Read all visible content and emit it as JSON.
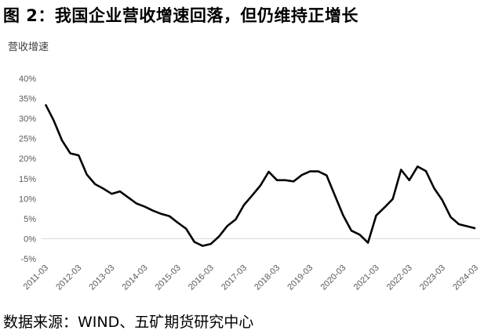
{
  "title": "图 2：我国企业营收增速回落，但仍维持正增长",
  "source": "数据来源：WIND、五矿期货研究中心",
  "chart_data": {
    "type": "line",
    "ylabel": "营收增速",
    "ylim": [
      -5,
      40
    ],
    "y_ticks": [
      "40%",
      "35%",
      "30%",
      "25%",
      "20%",
      "15%",
      "10%",
      "5%",
      "0%",
      "-5%"
    ],
    "x_ticks": [
      "2011-03",
      "2012-03",
      "2013-03",
      "2014-03",
      "2015-03",
      "2016-03",
      "2017-03",
      "2018-03",
      "2019-03",
      "2020-03",
      "2021-03",
      "2022-03",
      "2023-03",
      "2024-03"
    ],
    "grid": false,
    "line_color": "#000000",
    "series": [
      {
        "x": [
          "2011-03",
          "2011-06",
          "2011-09",
          "2011-12",
          "2012-03",
          "2012-06",
          "2012-09",
          "2012-12",
          "2013-03",
          "2013-06",
          "2013-09",
          "2013-12",
          "2014-03",
          "2014-06",
          "2014-09",
          "2014-12",
          "2015-03",
          "2015-06",
          "2015-09",
          "2015-12",
          "2016-03",
          "2016-06",
          "2016-09",
          "2016-12",
          "2017-03",
          "2017-06",
          "2017-09",
          "2017-12",
          "2018-03",
          "2018-06",
          "2018-09",
          "2018-12",
          "2019-03",
          "2019-06",
          "2019-09",
          "2019-12",
          "2020-03",
          "2020-06",
          "2020-09",
          "2020-12",
          "2021-03",
          "2021-06",
          "2021-09",
          "2021-12",
          "2022-03",
          "2022-06",
          "2022-09",
          "2022-12",
          "2023-03",
          "2023-06",
          "2023-09",
          "2023-12",
          "2024-03"
        ],
        "values": [
          33.5,
          29.5,
          24.5,
          21.3,
          20.8,
          16.0,
          13.6,
          12.5,
          11.2,
          11.8,
          10.3,
          8.8,
          8.0,
          7.0,
          6.2,
          5.6,
          4.0,
          2.5,
          -0.8,
          -1.8,
          -1.3,
          0.6,
          3.2,
          4.8,
          8.4,
          10.8,
          13.3,
          16.7,
          14.6,
          14.6,
          14.3,
          15.9,
          16.8,
          16.8,
          15.8,
          10.8,
          5.8,
          2.0,
          1.0,
          -1.0,
          5.8,
          7.8,
          9.9,
          17.2,
          14.6,
          18.0,
          16.9,
          12.6,
          9.6,
          5.4,
          3.6,
          3.1,
          2.6
        ]
      }
    ]
  }
}
